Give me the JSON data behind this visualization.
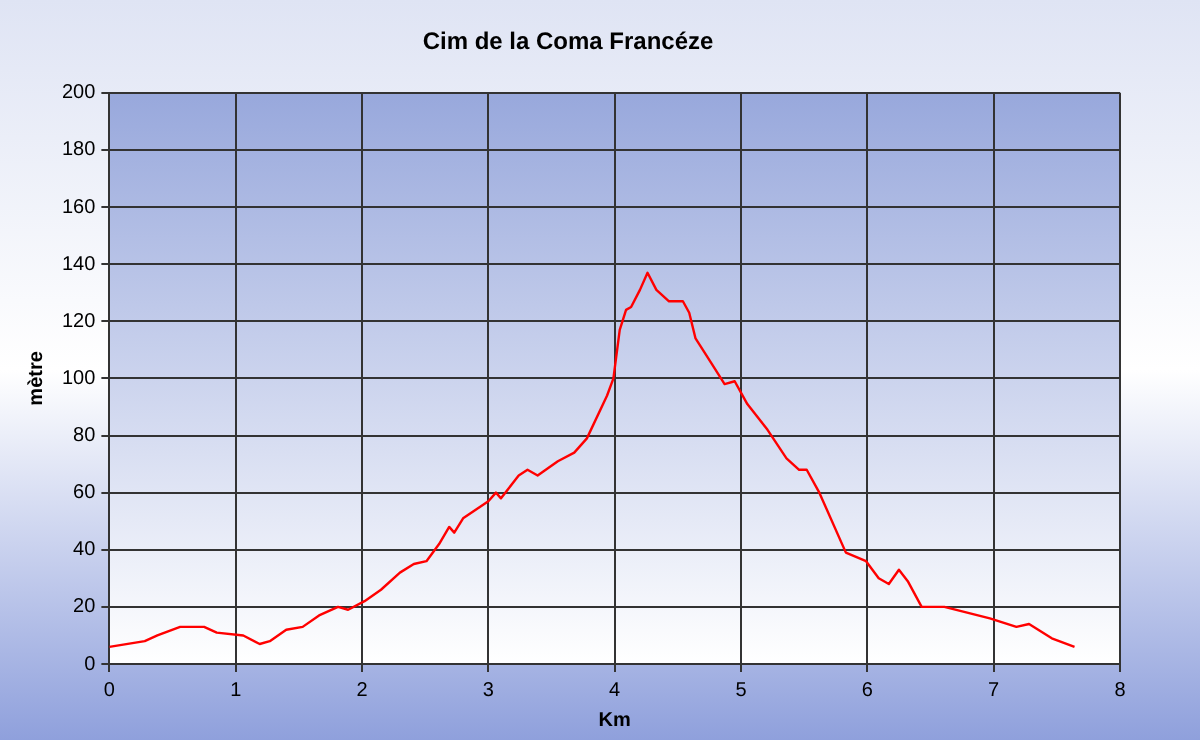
{
  "chart_data": {
    "type": "line",
    "title": "Cim de la Coma Francéze",
    "xlabel": "Km",
    "ylabel": "mètre",
    "x": [
      0,
      0.28,
      0.38,
      0.56,
      0.75,
      0.85,
      1.06,
      1.19,
      1.27,
      1.4,
      1.53,
      1.66,
      1.81,
      1.89,
      2.02,
      2.15,
      2.3,
      2.41,
      2.51,
      2.61,
      2.69,
      2.73,
      2.8,
      2.9,
      3.0,
      3.06,
      3.1,
      3.24,
      3.31,
      3.39,
      3.55,
      3.68,
      3.78,
      3.94,
      3.99,
      4.04,
      4.09,
      4.13,
      4.2,
      4.26,
      4.33,
      4.43,
      4.54,
      4.59,
      4.64,
      4.77,
      4.87,
      4.95,
      5.05,
      5.21,
      5.36,
      5.46,
      5.52,
      5.62,
      5.83,
      5.99,
      6.09,
      6.17,
      6.25,
      6.32,
      6.43,
      6.61,
      6.97,
      7.18,
      7.28,
      7.46,
      7.64
    ],
    "series": [
      {
        "color": "#ff0000",
        "values": [
          6,
          8,
          10,
          13,
          13,
          11,
          10,
          7,
          8,
          12,
          13,
          17,
          20,
          19,
          22,
          26,
          32,
          35,
          36,
          42,
          48,
          46,
          51,
          54,
          57,
          60,
          58,
          66,
          68,
          66,
          71,
          74,
          79,
          94,
          100,
          117,
          124,
          125,
          131,
          137,
          131,
          127,
          127,
          123,
          114,
          105,
          98,
          99,
          91,
          82,
          72,
          68,
          68,
          60,
          39,
          36,
          30,
          28,
          33,
          29,
          20,
          20,
          16,
          13,
          14,
          9,
          6
        ]
      }
    ],
    "xlim": [
      0,
      8
    ],
    "xticks": [
      0,
      1,
      2,
      3,
      4,
      5,
      6,
      7,
      8
    ],
    "ylim": [
      0,
      200
    ],
    "yticks": [
      0,
      20,
      40,
      60,
      80,
      100,
      120,
      140,
      160,
      180,
      200
    ],
    "grid": true,
    "legend": false,
    "marker": "none",
    "line_style": "solid"
  }
}
